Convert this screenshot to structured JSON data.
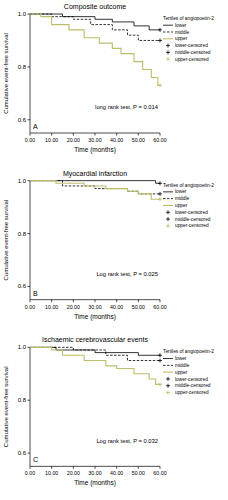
{
  "chart_data": [
    {
      "type": "step",
      "title": "Composite outcome",
      "panel": "A",
      "annotation": "long rank test, P = 0.014",
      "xlabel": "Time (months)",
      "ylabel": "Cumulative event-free survival",
      "legend_title": "Tertiles of angiopoetin-2",
      "legend": "right",
      "xlim": [
        0,
        60
      ],
      "ylim": [
        0.55,
        1.0
      ],
      "xticks": [
        {
          "value": 0,
          "label": "0.00"
        },
        {
          "value": 10,
          "label": "10.00"
        },
        {
          "value": 20,
          "label": "20.00"
        },
        {
          "value": 30,
          "label": "30.00"
        },
        {
          "value": 40,
          "label": "40.00"
        },
        {
          "value": 50,
          "label": "50.00"
        },
        {
          "value": 60,
          "label": "60.00"
        }
      ],
      "yticks": [
        0.6,
        0.8,
        {
          "value": 1,
          "label": "1.0"
        }
      ],
      "series": [
        {
          "name": "lower",
          "color": "#000000",
          "line_style": "solid",
          "x": [
            0,
            15,
            30,
            38,
            48,
            55,
            60
          ],
          "values": [
            1,
            0.99,
            0.98,
            0.97,
            0.955,
            0.94,
            0.94
          ]
        },
        {
          "name": "middle",
          "color": "#000000",
          "line_style": "dashed",
          "x": [
            0,
            10,
            20,
            28,
            38,
            45,
            50,
            60
          ],
          "values": [
            1,
            0.99,
            0.98,
            0.96,
            0.94,
            0.92,
            0.9,
            0.9
          ]
        },
        {
          "name": "upper",
          "color": "#bdbd6b",
          "line_style": "solid",
          "x": [
            0,
            5,
            10,
            18,
            25,
            32,
            38,
            42,
            48,
            52,
            56,
            59,
            60
          ],
          "values": [
            1,
            0.99,
            0.96,
            0.94,
            0.91,
            0.89,
            0.87,
            0.85,
            0.82,
            0.79,
            0.76,
            0.73,
            0.73
          ]
        },
        {
          "name": "lower-censored",
          "color": "#000000",
          "type": "scatter",
          "marker": "plus",
          "x": [
            60
          ],
          "values": [
            0.94
          ]
        },
        {
          "name": "middle-censored",
          "color": "#000000",
          "type": "scatter",
          "marker": "plus",
          "x": [
            60
          ],
          "values": [
            0.9
          ]
        },
        {
          "name": "upper-censored",
          "color": "#bdbd6b",
          "type": "scatter",
          "marker": "plus",
          "x": [
            60
          ],
          "values": [
            0.73
          ]
        }
      ]
    },
    {
      "type": "step",
      "title": "Myocardial infarction",
      "panel": "B",
      "annotation": "Log rank test, P = 0.025",
      "xlabel": "Time (months)",
      "ylabel": "Cumulative event-free survival",
      "legend_title": "Tertiles of angiopoetin-2",
      "legend": "right",
      "xlim": [
        0,
        60
      ],
      "ylim": [
        0.55,
        1.0
      ],
      "xticks": [
        {
          "value": 0,
          "label": "0.00"
        },
        {
          "value": 10,
          "label": "10.00"
        },
        {
          "value": 20,
          "label": "20.00"
        },
        {
          "value": 30,
          "label": "30.00"
        },
        {
          "value": 40,
          "label": "40.00"
        },
        {
          "value": 50,
          "label": "50.00"
        },
        {
          "value": 60,
          "label": "60.00"
        }
      ],
      "yticks": [
        0.6,
        0.8,
        {
          "value": 1,
          "label": "1.0"
        }
      ],
      "series": [
        {
          "name": "lower",
          "color": "#000000",
          "line_style": "solid",
          "x": [
            0,
            58,
            60
          ],
          "values": [
            1,
            0.99,
            0.99
          ]
        },
        {
          "name": "middle",
          "color": "#000000",
          "line_style": "dashed",
          "x": [
            0,
            15,
            30,
            45,
            50,
            60
          ],
          "values": [
            1,
            0.98,
            0.97,
            0.96,
            0.95,
            0.95
          ]
        },
        {
          "name": "upper",
          "color": "#bdbd6b",
          "line_style": "solid",
          "x": [
            0,
            12,
            25,
            35,
            45,
            50,
            56,
            60
          ],
          "values": [
            1,
            0.99,
            0.98,
            0.97,
            0.96,
            0.95,
            0.93,
            0.93
          ]
        },
        {
          "name": "lower-censored",
          "color": "#000000",
          "type": "scatter",
          "marker": "plus",
          "x": [
            60
          ],
          "values": [
            0.99
          ]
        },
        {
          "name": "middle-censored",
          "color": "#000000",
          "type": "scatter",
          "marker": "plus",
          "x": [
            60
          ],
          "values": [
            0.95
          ]
        },
        {
          "name": "upper-censored",
          "color": "#bdbd6b",
          "type": "scatter",
          "marker": "plus",
          "x": [
            60
          ],
          "values": [
            0.93
          ]
        }
      ]
    },
    {
      "type": "step",
      "title": "Ischaemic cerebrovascular events",
      "panel": "C",
      "annotation": "Log rank test, P = 0.032",
      "xlabel": "Time (months)",
      "ylabel": "Cumulative event-free survival",
      "legend_title": "Tertiles of angiopoetin-2",
      "legend": "right",
      "xlim": [
        0,
        60
      ],
      "ylim": [
        0.55,
        1.0
      ],
      "xticks": [
        {
          "value": 0,
          "label": "0.00"
        },
        {
          "value": 10,
          "label": "10.00"
        },
        {
          "value": 20,
          "label": "20.00"
        },
        {
          "value": 30,
          "label": "30.00"
        },
        {
          "value": 40,
          "label": "40.00"
        },
        {
          "value": 50,
          "label": "50.00"
        },
        {
          "value": 60,
          "label": "60.00"
        }
      ],
      "yticks": [
        0.6,
        0.8,
        {
          "value": 1,
          "label": "1.0"
        }
      ],
      "series": [
        {
          "name": "lower",
          "color": "#000000",
          "line_style": "solid",
          "x": [
            0,
            12,
            30,
            50,
            60
          ],
          "values": [
            1,
            0.99,
            0.98,
            0.97,
            0.97
          ]
        },
        {
          "name": "middle",
          "color": "#000000",
          "line_style": "dashed",
          "x": [
            0,
            20,
            35,
            45,
            60
          ],
          "values": [
            1,
            0.99,
            0.97,
            0.95,
            0.95
          ]
        },
        {
          "name": "upper",
          "color": "#bdbd6b",
          "line_style": "solid",
          "x": [
            0,
            10,
            15,
            25,
            35,
            40,
            48,
            55,
            58,
            60
          ],
          "values": [
            1,
            0.99,
            0.97,
            0.95,
            0.93,
            0.92,
            0.9,
            0.88,
            0.86,
            0.86
          ]
        },
        {
          "name": "lower-censored",
          "color": "#000000",
          "type": "scatter",
          "marker": "plus",
          "x": [
            60
          ],
          "values": [
            0.97
          ]
        },
        {
          "name": "middle-censored",
          "color": "#000000",
          "type": "scatter",
          "marker": "plus",
          "x": [
            60
          ],
          "values": [
            0.95
          ]
        },
        {
          "name": "upper-censored",
          "color": "#bdbd6b",
          "type": "scatter",
          "marker": "plus",
          "x": [
            60
          ],
          "values": [
            0.86
          ]
        }
      ]
    }
  ]
}
